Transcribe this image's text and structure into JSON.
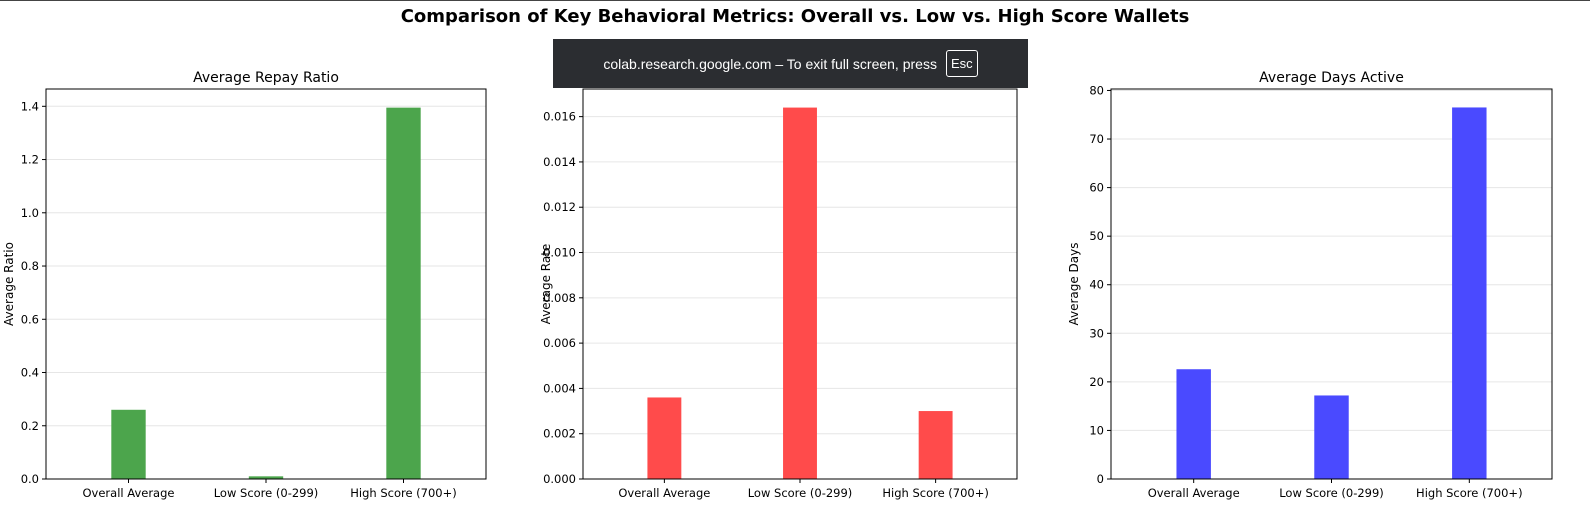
{
  "suptitle": "Comparison of Key Behavioral Metrics: Overall vs. Low vs. High Score Wallets",
  "fullscreen_banner": {
    "message": "colab.research.google.com – To exit full screen, press",
    "key_label": "Esc"
  },
  "chart_data": [
    {
      "type": "bar",
      "title": "Average Repay Ratio",
      "xlabel": "",
      "ylabel": "Average Ratio",
      "categories": [
        "Overall Average",
        "Low Score (0-299)",
        "High Score (700+)"
      ],
      "values": [
        0.26,
        0.01,
        1.395
      ],
      "ylim": [
        0,
        1.465
      ],
      "yticks": [
        0.0,
        0.2,
        0.4,
        0.6,
        0.8,
        1.0,
        1.2,
        1.4
      ],
      "ytick_labels": [
        "0.0",
        "0.2",
        "0.4",
        "0.6",
        "0.8",
        "1.0",
        "1.2",
        "1.4"
      ],
      "color": "#4ca54c",
      "grid": "y"
    },
    {
      "type": "bar",
      "title": "",
      "xlabel": "",
      "ylabel": "Average Rate",
      "categories": [
        "Overall Average",
        "Low Score (0-299)",
        "High Score (700+)"
      ],
      "values": [
        0.0036,
        0.0164,
        0.003
      ],
      "ylim": [
        0,
        0.01722
      ],
      "yticks": [
        0.0,
        0.002,
        0.004,
        0.006,
        0.008,
        0.01,
        0.012,
        0.014,
        0.016
      ],
      "ytick_labels": [
        "0.000",
        "0.002",
        "0.004",
        "0.006",
        "0.008",
        "0.010",
        "0.012",
        "0.014",
        "0.016"
      ],
      "color": "#ff4b4b",
      "grid": "y"
    },
    {
      "type": "bar",
      "title": "Average Days Active",
      "xlabel": "",
      "ylabel": "Average Days",
      "categories": [
        "Overall Average",
        "Low Score (0-299)",
        "High Score (700+)"
      ],
      "values": [
        22.6,
        17.2,
        76.5
      ],
      "ylim": [
        0,
        80.3
      ],
      "yticks": [
        0,
        10,
        20,
        30,
        40,
        50,
        60,
        70,
        80
      ],
      "ytick_labels": [
        "0",
        "10",
        "20",
        "30",
        "40",
        "50",
        "60",
        "70",
        "80"
      ],
      "color": "#4a4aff",
      "grid": "y"
    }
  ]
}
